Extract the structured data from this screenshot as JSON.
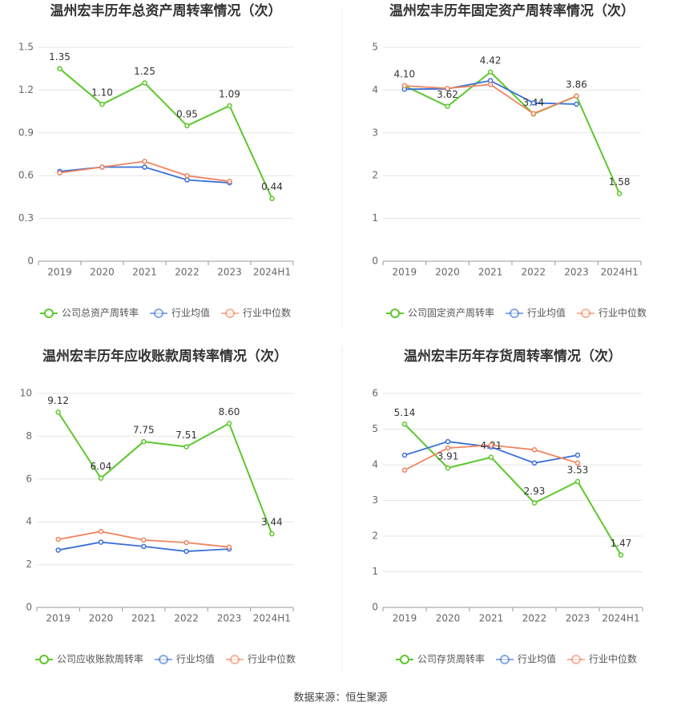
{
  "chart_data": [
    {
      "type": "line",
      "title": "温州宏丰历年总资产周转率情况（次）",
      "categories": [
        "2019",
        "2020",
        "2021",
        "2022",
        "2023",
        "2024H1"
      ],
      "ylim": [
        0,
        1.5
      ],
      "yticks": [
        0,
        0.3,
        0.6,
        0.9,
        1.2,
        1.5
      ],
      "grid": true,
      "series": [
        {
          "name": "公司总资产周转率",
          "color": "#5cc72c",
          "values": [
            1.35,
            1.1,
            1.25,
            0.95,
            1.09,
            0.44
          ],
          "value_labels": [
            "1.35",
            "1.10",
            "1.25",
            "0.95",
            "1.09",
            "0.44"
          ]
        },
        {
          "name": "行业均值",
          "color": "#3a6fd8",
          "values": [
            0.63,
            0.66,
            0.66,
            0.57,
            0.55,
            null
          ]
        },
        {
          "name": "行业中位数",
          "color": "#f0845f",
          "values": [
            0.62,
            0.66,
            0.7,
            0.6,
            0.56,
            null
          ]
        }
      ]
    },
    {
      "type": "line",
      "title": "温州宏丰历年固定资产周转率情况（次）",
      "categories": [
        "2019",
        "2020",
        "2021",
        "2022",
        "2023",
        "2024H1"
      ],
      "ylim": [
        0,
        5
      ],
      "yticks": [
        0,
        1,
        2,
        3,
        4,
        5
      ],
      "grid": true,
      "series": [
        {
          "name": "公司固定资产周转率",
          "color": "#5cc72c",
          "values": [
            4.1,
            3.62,
            4.42,
            3.44,
            3.86,
            1.58
          ],
          "value_labels": [
            "4.10",
            "3.62",
            "4.42",
            "3.44",
            "3.86",
            "1.58"
          ]
        },
        {
          "name": "行业均值",
          "color": "#3a6fd8",
          "values": [
            4.02,
            4.03,
            4.22,
            3.7,
            3.67,
            null
          ]
        },
        {
          "name": "行业中位数",
          "color": "#f0845f",
          "values": [
            4.1,
            4.04,
            4.13,
            3.45,
            3.86,
            null
          ]
        }
      ]
    },
    {
      "type": "line",
      "title": "温州宏丰历年应收账款周转率情况（次）",
      "categories": [
        "2019",
        "2020",
        "2021",
        "2022",
        "2023",
        "2024H1"
      ],
      "ylim": [
        0,
        10
      ],
      "yticks": [
        0,
        2,
        4,
        6,
        8,
        10
      ],
      "grid": true,
      "series": [
        {
          "name": "公司应收账款周转率",
          "color": "#5cc72c",
          "values": [
            9.12,
            6.04,
            7.75,
            7.51,
            8.6,
            3.44
          ],
          "value_labels": [
            "9.12",
            "6.04",
            "7.75",
            "7.51",
            "8.60",
            "3.44"
          ]
        },
        {
          "name": "行业均值",
          "color": "#3a6fd8",
          "values": [
            2.68,
            3.05,
            2.85,
            2.62,
            2.73,
            null
          ]
        },
        {
          "name": "行业中位数",
          "color": "#f0845f",
          "values": [
            3.18,
            3.55,
            3.15,
            3.03,
            2.82,
            null
          ]
        }
      ]
    },
    {
      "type": "line",
      "title": "温州宏丰历年存货周转率情况（次）",
      "categories": [
        "2019",
        "2020",
        "2021",
        "2022",
        "2023",
        "2024H1"
      ],
      "ylim": [
        0,
        6
      ],
      "yticks": [
        0,
        1,
        2,
        3,
        4,
        5,
        6
      ],
      "grid": true,
      "series": [
        {
          "name": "公司存货周转率",
          "color": "#5cc72c",
          "values": [
            5.14,
            3.91,
            4.21,
            2.93,
            3.53,
            1.47
          ],
          "value_labels": [
            "5.14",
            "3.91",
            "4.21",
            "2.93",
            "3.53",
            "1.47"
          ]
        },
        {
          "name": "行业均值",
          "color": "#3a6fd8",
          "values": [
            4.27,
            4.65,
            4.5,
            4.05,
            4.27,
            null
          ]
        },
        {
          "name": "行业中位数",
          "color": "#f0845f",
          "values": [
            3.85,
            4.47,
            4.55,
            4.42,
            4.05,
            null
          ]
        }
      ]
    }
  ],
  "source": "数据来源：恒生聚源"
}
